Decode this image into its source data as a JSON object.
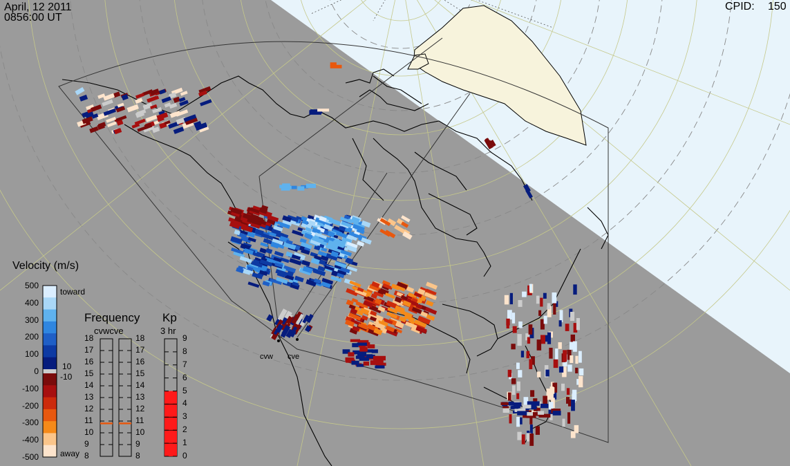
{
  "header": {
    "date": "April, 12 2011",
    "time": "0856:00 UT",
    "cpid_label": "CPID:",
    "cpid_value": "150"
  },
  "colors": {
    "background": "#9b9b9b",
    "daylight": "#e8f4fb",
    "greenland": "#f7f3dc",
    "coast": "#000000",
    "grid": "#c5c88a"
  },
  "velocity_scale": {
    "title": "Velocity (m/s)",
    "ticks": [
      "500",
      "400",
      "300",
      "200",
      "100",
      "0",
      "-100",
      "-200",
      "-300",
      "-400",
      "-500"
    ],
    "toward_label": "toward",
    "away_label": "away",
    "plus_label": "10",
    "minus_label": "-10",
    "colors": [
      "#dbeeff",
      "#a9d7f7",
      "#5fb2ee",
      "#2f86e0",
      "#1f5fc6",
      "#0d3aa3",
      "#061c7d",
      "#7a0b0b",
      "#a70f0f",
      "#cc2a0c",
      "#e8580e",
      "#f58a1a",
      "#fbc58a",
      "#fde4cc"
    ]
  },
  "frequency": {
    "title": "Frequency",
    "radars": "cvwcve",
    "ticks": [
      "18",
      "17",
      "16",
      "15",
      "14",
      "13",
      "12",
      "11",
      "10",
      "9",
      "8"
    ],
    "cvw_value": 10.8,
    "cve_value": 10.8
  },
  "kp": {
    "title": "Kp",
    "subtitle": "3 hr",
    "ticks": [
      "9",
      "8",
      "7",
      "6",
      "5",
      "4",
      "3",
      "2",
      "1",
      "0"
    ],
    "value": 5
  },
  "radars": {
    "cvw": "cvw",
    "cve": "cve"
  }
}
